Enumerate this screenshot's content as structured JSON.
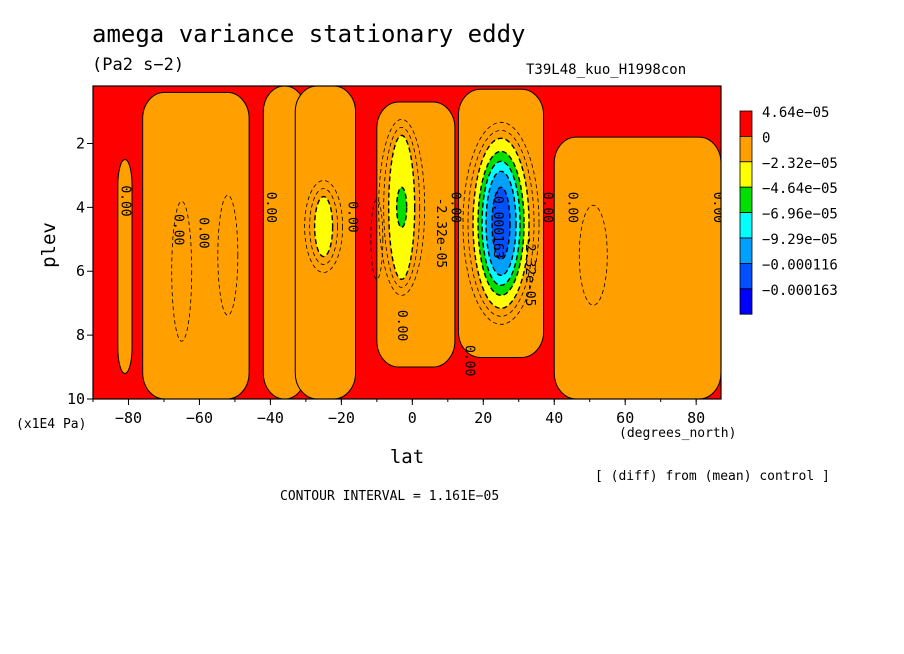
{
  "title": "amega variance stationary eddy",
  "units": "(Pa2 s−2)",
  "run_label": "T39L48_kuo_H1998con",
  "diff_note": "[ (diff) from (mean) control ]",
  "contour_interval_text": "CONTOUR INTERVAL = 1.161E−05",
  "chart_data": {
    "type": "contour",
    "title": "amega variance stationary eddy",
    "xlabel": "lat",
    "xunits": "(degrees_north)",
    "ylabel": "plev",
    "yunits": "(x1E4 Pa)",
    "xlim": [
      -90,
      87
    ],
    "ylim": [
      10,
      0.2
    ],
    "xticks": [
      -80,
      -60,
      -40,
      -20,
      0,
      20,
      40,
      60,
      80
    ],
    "xtick_labels": [
      "−80",
      "−60",
      "−40",
      "−20",
      "0",
      "20",
      "40",
      "60",
      "80"
    ],
    "yticks": [
      2,
      4,
      6,
      8,
      10
    ],
    "ytick_labels": [
      "2",
      "4",
      "6",
      "8",
      "10"
    ],
    "contour_interval": 1.161e-05,
    "colorbar": {
      "levels": [
        "4.64e−05",
        "0",
        "−2.32e−05",
        "−4.64e−05",
        "−6.96e−05",
        "−9.29e−05",
        "−0.000116",
        "−0.000163"
      ],
      "colors": [
        "#ff0000",
        "#ffa000",
        "#ffff00",
        "#00e000",
        "#00ffff",
        "#00a0ff",
        "#0050ff",
        "#0000ff"
      ]
    },
    "orange_regions": [
      {
        "lon": [
          -83,
          -79
        ],
        "p": [
          2.5,
          9.2
        ]
      },
      {
        "lon": [
          -76,
          -46
        ],
        "p": [
          0.4,
          10
        ]
      },
      {
        "lon": [
          -42,
          -30
        ],
        "p": [
          0.2,
          10
        ]
      },
      {
        "lon": [
          -33,
          -16
        ],
        "p": [
          0.2,
          10
        ]
      },
      {
        "lon": [
          -10,
          12
        ],
        "p": [
          0.7,
          9.0
        ]
      },
      {
        "lon": [
          13,
          37
        ],
        "p": [
          0.3,
          8.7
        ]
      },
      {
        "lon": [
          40,
          87
        ],
        "p": [
          1.8,
          10
        ]
      }
    ],
    "minima": [
      {
        "lon": -25,
        "p": 4.6,
        "value_class": "−2.32e−05"
      },
      {
        "lon": -3,
        "p": 4.0,
        "value_class": "−4.64e−05"
      },
      {
        "lon": 25,
        "p": 4.5,
        "value_class": "−0.000163"
      }
    ],
    "contour_labels": [
      {
        "text": "0.00",
        "lon": -82,
        "p": 3.8
      },
      {
        "text": "0.00",
        "lon": -67,
        "p": 4.7
      },
      {
        "text": "0.00",
        "lon": -60,
        "p": 4.8
      },
      {
        "text": "0.00",
        "lon": -41,
        "p": 4.0
      },
      {
        "text": "0.00",
        "lon": -18,
        "p": 4.3
      },
      {
        "text": "0.00",
        "lon": -4,
        "p": 7.7
      },
      {
        "text": "-2.32e-05",
        "lon": 7,
        "p": 4.8
      },
      {
        "text": "0.00",
        "lon": 11,
        "p": 4.0
      },
      {
        "text": "0.00",
        "lon": 15,
        "p": 8.8
      },
      {
        "text": "-0.000163",
        "lon": 23,
        "p": 4.5
      },
      {
        "text": "-2.32e-05",
        "lon": 32,
        "p": 6.0
      },
      {
        "text": "0.00",
        "lon": 37,
        "p": 4.0
      },
      {
        "text": "0.00",
        "lon": 44,
        "p": 4.0
      },
      {
        "text": "0.00",
        "lon": 85,
        "p": 4.0
      }
    ]
  }
}
